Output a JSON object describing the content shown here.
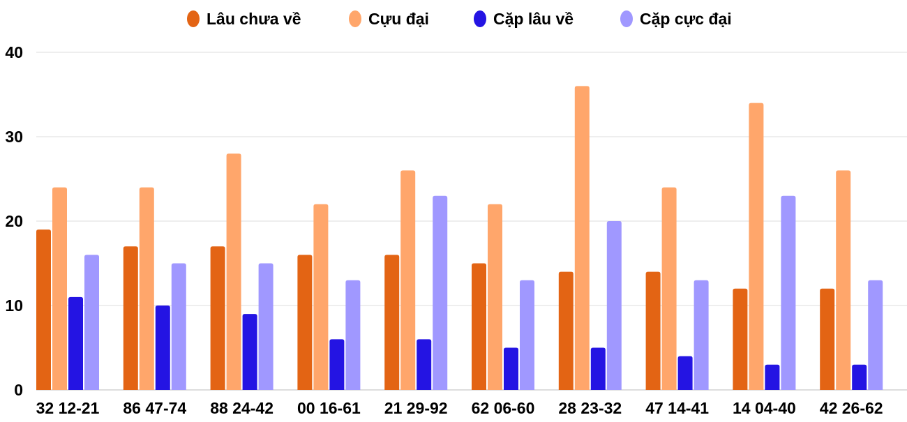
{
  "chart_data": {
    "type": "bar",
    "title": "",
    "xlabel": "",
    "ylabel": "",
    "ylim": [
      0,
      40
    ],
    "yticks": [
      0,
      10,
      20,
      30,
      40
    ],
    "grid": true,
    "legend_position": "top",
    "categories": [
      "32 12-21",
      "86 47-74",
      "88 24-42",
      "00 16-61",
      "21 29-92",
      "62 06-60",
      "28 23-32",
      "47 14-41",
      "14 04-40",
      "42 26-62"
    ],
    "series": [
      {
        "name": "Lâu chưa về",
        "color": "#E36414",
        "values": [
          19,
          17,
          17,
          16,
          16,
          15,
          14,
          14,
          12,
          12
        ]
      },
      {
        "name": "Cựu đại",
        "color": "#FFA66B",
        "values": [
          24,
          24,
          28,
          22,
          26,
          22,
          36,
          24,
          34,
          26
        ]
      },
      {
        "name": "Cặp lâu về",
        "color": "#2414E3",
        "values": [
          11,
          10,
          9,
          6,
          6,
          5,
          5,
          4,
          3,
          3
        ]
      },
      {
        "name": "Cặp cực đại",
        "color": "#A098FF",
        "values": [
          16,
          15,
          15,
          13,
          23,
          13,
          20,
          13,
          23,
          13
        ]
      }
    ]
  }
}
